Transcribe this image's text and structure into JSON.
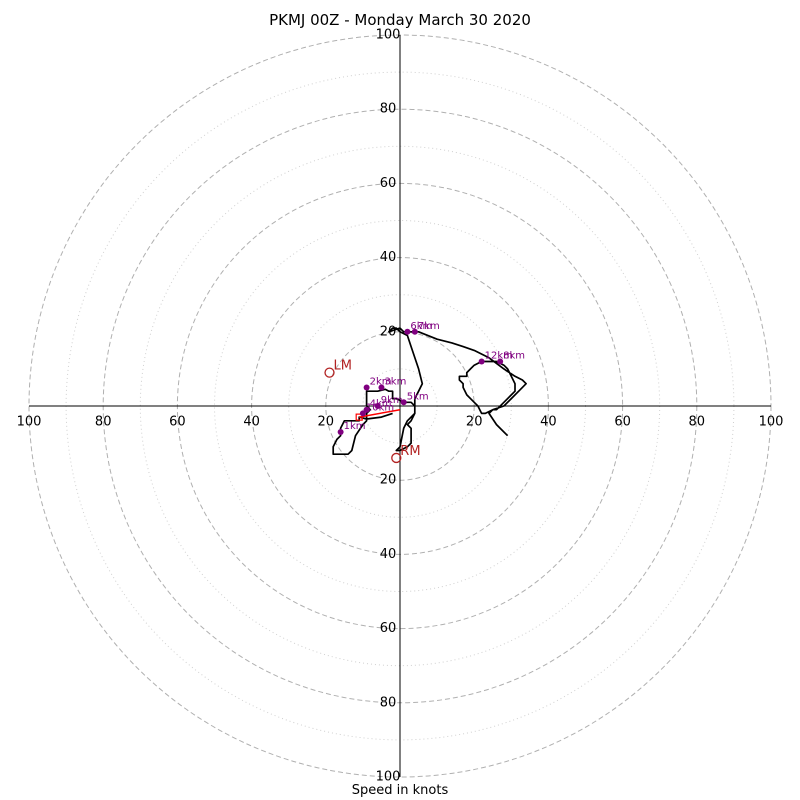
{
  "chart_data": {
    "type": "hodograph",
    "title": "PKMJ 00Z - Monday March 30 2020",
    "xlabel": "Speed in knots",
    "ylabel": "",
    "xlim": [
      -100,
      100
    ],
    "ylim": [
      -100,
      100
    ],
    "ring_major": [
      20,
      40,
      60,
      80,
      100
    ],
    "ring_minor": [
      10,
      30,
      50,
      70,
      90
    ],
    "tick_labels_right": [
      "20",
      "40",
      "60",
      "80",
      "100"
    ],
    "tick_labels_left": [
      "100",
      "80",
      "60",
      "40",
      "20"
    ],
    "tick_labels_up": [
      "20",
      "40",
      "60",
      "80",
      "100"
    ],
    "tick_labels_down": [
      "20",
      "40",
      "60",
      "80",
      "100"
    ],
    "colors": {
      "trace": "#000000",
      "height_marker": "#800080",
      "storm_motion": "#b22222",
      "mean_wind": "#ff0000",
      "ring": "#b0b0b0",
      "minor_ring": "#d0d0d0"
    },
    "trace": [
      [
        -2,
        -2
      ],
      [
        -5,
        -3
      ],
      [
        -9,
        -3.5
      ],
      [
        -11,
        -3
      ],
      [
        -11,
        -4
      ],
      [
        -12,
        -4
      ],
      [
        -14,
        -4
      ],
      [
        -15,
        -4
      ],
      [
        -16,
        -6
      ],
      [
        -16,
        -8
      ],
      [
        -17,
        -9
      ],
      [
        -18,
        -11
      ],
      [
        -18,
        -13
      ],
      [
        -14,
        -13
      ],
      [
        -13,
        -12
      ],
      [
        -12,
        -8
      ],
      [
        -10,
        -5
      ],
      [
        -9,
        -4
      ],
      [
        -9,
        -2
      ],
      [
        -8,
        -1
      ],
      [
        -9,
        0
      ],
      [
        -9,
        2
      ],
      [
        -9,
        4
      ],
      [
        -8,
        4
      ],
      [
        -6,
        4
      ],
      [
        -4,
        4.5
      ],
      [
        -3,
        4
      ],
      [
        -2,
        4
      ],
      [
        -2,
        2
      ],
      [
        -1,
        2
      ],
      [
        1,
        1
      ],
      [
        3,
        1
      ],
      [
        4,
        0
      ],
      [
        4,
        -1
      ],
      [
        4,
        -2
      ],
      [
        3,
        -4
      ],
      [
        2,
        -5
      ],
      [
        3,
        -6
      ],
      [
        3,
        -8
      ],
      [
        3,
        -10
      ],
      [
        2,
        -11
      ],
      [
        0,
        -12
      ],
      [
        -1,
        -12
      ],
      [
        0,
        -11
      ],
      [
        1,
        -6
      ],
      [
        2,
        -4
      ],
      [
        4,
        -2
      ],
      [
        4,
        0
      ],
      [
        4,
        2
      ],
      [
        5,
        4
      ],
      [
        6,
        6
      ],
      [
        5,
        10
      ],
      [
        3,
        16
      ],
      [
        2,
        19
      ],
      [
        0,
        20
      ],
      [
        -1,
        21
      ],
      [
        -2,
        21
      ],
      [
        -3,
        20
      ],
      [
        0,
        21
      ],
      [
        1,
        20
      ],
      [
        5,
        20
      ],
      [
        10,
        18
      ],
      [
        14,
        17
      ],
      [
        17,
        16
      ],
      [
        20,
        15
      ],
      [
        24,
        13
      ],
      [
        28,
        10
      ],
      [
        31,
        8
      ],
      [
        33,
        7
      ],
      [
        34,
        6
      ],
      [
        32,
        4
      ],
      [
        30,
        2
      ],
      [
        28,
        0
      ],
      [
        25,
        -1
      ],
      [
        23,
        -2
      ],
      [
        22,
        -2
      ],
      [
        21,
        0
      ],
      [
        20,
        1
      ],
      [
        18,
        3
      ],
      [
        17,
        5
      ],
      [
        17,
        6
      ],
      [
        16,
        7
      ],
      [
        16,
        8
      ],
      [
        18,
        8
      ],
      [
        18,
        9
      ],
      [
        19,
        10
      ],
      [
        20,
        11
      ],
      [
        22,
        12
      ],
      [
        26,
        12
      ],
      [
        28,
        11
      ],
      [
        29,
        10
      ],
      [
        30,
        8
      ],
      [
        31,
        6
      ],
      [
        31,
        4
      ],
      [
        30,
        3
      ],
      [
        28,
        1
      ],
      [
        26,
        -1
      ],
      [
        25,
        -1
      ],
      [
        24,
        -2
      ],
      [
        26,
        -5
      ],
      [
        28,
        -7
      ],
      [
        29,
        -8
      ]
    ],
    "height_markers": [
      {
        "label": "1km",
        "x": -16,
        "y": -7
      },
      {
        "label": "2km",
        "x": -9,
        "y": 5
      },
      {
        "label": "3km",
        "x": -5,
        "y": 5
      },
      {
        "label": "4km",
        "x": -9,
        "y": -1
      },
      {
        "label": "5km",
        "x": 1,
        "y": 1
      },
      {
        "label": "6km",
        "x": 2,
        "y": 20
      },
      {
        "label": "7km",
        "x": 4,
        "y": 20
      },
      {
        "label": "8km",
        "x": 27,
        "y": 12
      },
      {
        "label": "12km",
        "x": 22,
        "y": 12
      }
    ],
    "extra_markers": [
      {
        "label": "9km",
        "x": -6,
        "y": 0
      },
      {
        "label": "10km",
        "x": -10,
        "y": -2
      }
    ],
    "storm_motions": [
      {
        "label": "LM",
        "x": -19,
        "y": 9
      },
      {
        "label": "RM",
        "x": -1,
        "y": -14
      }
    ],
    "mean_wind": {
      "from": [
        -11,
        -3
      ],
      "to": [
        0,
        -1
      ]
    }
  }
}
